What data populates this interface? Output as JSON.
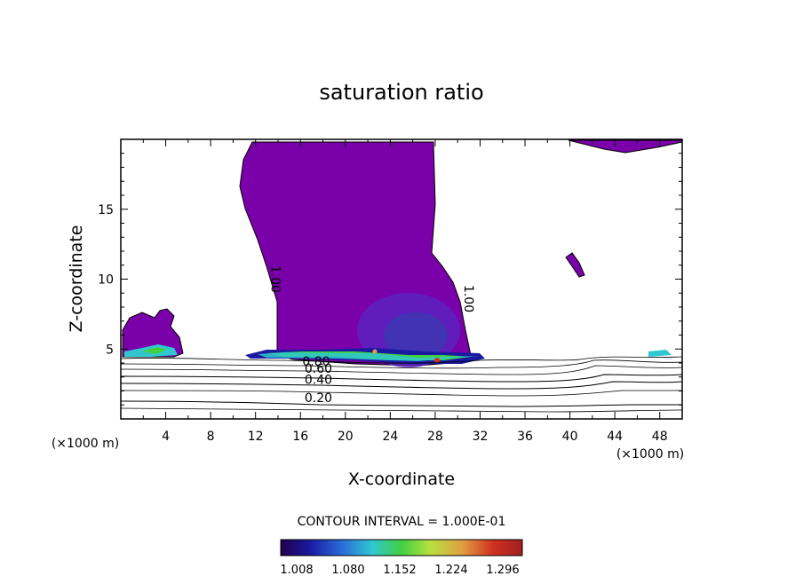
{
  "chart_data": {
    "type": "contour",
    "title": "saturation ratio",
    "xlabel": "X-coordinate",
    "ylabel": "Z-coordinate",
    "x_unit": "(×1000 m)",
    "z_unit": "(×1000 m)",
    "xlim": [
      0,
      50
    ],
    "ylim": [
      0,
      20
    ],
    "x_ticks": [
      4,
      8,
      12,
      16,
      20,
      24,
      28,
      32,
      36,
      40,
      44,
      48
    ],
    "y_ticks": [
      5,
      10,
      15
    ],
    "contour_interval": "CONTOUR INTERVAL = 1.000E-01",
    "contour_labels": [
      {
        "text": "1.00",
        "x": 13.4,
        "z": 10.0,
        "rotate": 90
      },
      {
        "text": "1.00",
        "x": 30.6,
        "z": 8.6,
        "rotate": 90
      },
      {
        "text": "0.80",
        "x": 17.4,
        "z": 3.8
      },
      {
        "text": "0.60",
        "x": 17.6,
        "z": 3.3
      },
      {
        "text": "0.40",
        "x": 17.6,
        "z": 2.5
      },
      {
        "text": "0.20",
        "x": 17.6,
        "z": 1.2
      }
    ],
    "colorbar": {
      "ticks": [
        "1.008",
        "1.080",
        "1.152",
        "1.224",
        "1.296"
      ],
      "colors": [
        "#20004a",
        "#1a1aa0",
        "#2a6ad8",
        "#30c8d0",
        "#40d040",
        "#b8e040",
        "#e0a040",
        "#d03020",
        "#a02020"
      ]
    },
    "fill_colors": {
      "supersat": "#7a00aa",
      "moderate": "#6a1cc0",
      "core": "#3a3ab0"
    }
  }
}
